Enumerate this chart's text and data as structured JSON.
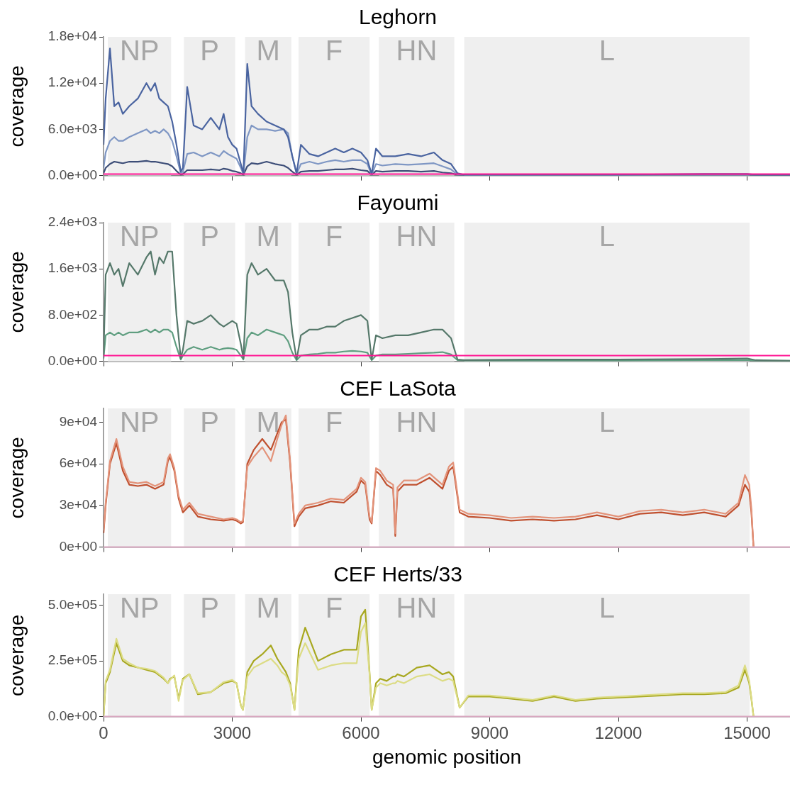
{
  "chart_data": [
    {
      "type": "line",
      "title": "Leghorn",
      "ylabel": "coverage",
      "marker": "none",
      "grid": false,
      "tick_labels": "y",
      "xlim": [
        0,
        16000
      ],
      "xticks": [
        0,
        3000,
        6000,
        9000,
        12000,
        15000
      ],
      "ylim": [
        0,
        18000
      ],
      "yticks": [
        {
          "value": 0,
          "label": "0.0e+00"
        },
        {
          "value": 6000,
          "label": "6.0e+03"
        },
        {
          "value": 12000,
          "label": "1.2e+04"
        },
        {
          "value": 18000,
          "label": "1.8e+04"
        }
      ],
      "bands": [
        {
          "axis": "x",
          "from": 100,
          "to": 1575,
          "label": "NP",
          "color": "#efefef"
        },
        {
          "axis": "x",
          "from": 1874,
          "to": 3068,
          "label": "P",
          "color": "#efefef"
        },
        {
          "axis": "x",
          "from": 3300,
          "to": 4378,
          "label": "M",
          "color": "#efefef"
        },
        {
          "axis": "x",
          "from": 4544,
          "to": 6202,
          "label": "F",
          "color": "#efefef"
        },
        {
          "axis": "x",
          "from": 6418,
          "to": 8176,
          "label": "HN",
          "color": "#efefef"
        },
        {
          "axis": "x",
          "from": 8408,
          "to": 15058,
          "label": "L",
          "color": "#efefef"
        }
      ],
      "ref_lines": [
        {
          "axis": "y",
          "value": 200,
          "color": "#ff1493"
        }
      ],
      "x": [
        0,
        50,
        150,
        250,
        350,
        450,
        600,
        800,
        1000,
        1100,
        1200,
        1300,
        1400,
        1500,
        1600,
        1700,
        1800,
        1850,
        1950,
        2100,
        2300,
        2500,
        2700,
        2800,
        2900,
        3000,
        3100,
        3200,
        3260,
        3350,
        3450,
        3600,
        3800,
        4000,
        4200,
        4300,
        4400,
        4500,
        4600,
        4800,
        5000,
        5200,
        5400,
        5600,
        5800,
        6000,
        6150,
        6250,
        6350,
        6500,
        6800,
        7100,
        7400,
        7700,
        7900,
        8100,
        8250,
        8400,
        10000,
        12000,
        14000,
        15000,
        15200,
        16000
      ],
      "series": [
        {
          "color": "#4a64a0",
          "values": [
            4000,
            10000,
            16500,
            9000,
            9500,
            8000,
            9000,
            10000,
            12000,
            11000,
            12000,
            10000,
            9500,
            9000,
            7000,
            4000,
            500,
            1000,
            11500,
            6500,
            6000,
            7500,
            6000,
            8000,
            5000,
            4000,
            3500,
            1500,
            300,
            14500,
            9000,
            8000,
            7000,
            6500,
            6000,
            5000,
            2500,
            300,
            4000,
            2800,
            2500,
            3000,
            3500,
            3000,
            3500,
            3000,
            2000,
            200,
            3500,
            2500,
            2500,
            2800,
            2500,
            3000,
            2000,
            1500,
            300,
            100,
            100,
            100,
            200,
            200,
            100,
            100
          ]
        },
        {
          "color": "#7f97c4",
          "values": [
            1000,
            3000,
            4500,
            5000,
            4500,
            4500,
            5000,
            5500,
            6000,
            5500,
            5800,
            5500,
            6000,
            5500,
            4500,
            2500,
            300,
            500,
            2800,
            3000,
            2500,
            3000,
            2500,
            3200,
            2800,
            2500,
            2200,
            1000,
            200,
            5000,
            6500,
            6000,
            6000,
            5800,
            6000,
            5500,
            2500,
            200,
            1500,
            1800,
            1500,
            1800,
            2000,
            1800,
            2000,
            2000,
            1500,
            100,
            1500,
            1300,
            1500,
            1400,
            1500,
            1600,
            1200,
            800,
            100,
            100,
            100,
            100,
            100,
            100,
            100,
            100
          ]
        },
        {
          "color": "#3d4e78",
          "values": [
            300,
            1000,
            1500,
            1800,
            1700,
            1600,
            1800,
            1800,
            1900,
            1800,
            1800,
            1700,
            1600,
            1500,
            1200,
            600,
            100,
            200,
            700,
            700,
            700,
            800,
            700,
            900,
            800,
            600,
            500,
            300,
            100,
            1200,
            1600,
            1500,
            1800,
            1500,
            1300,
            1000,
            500,
            100,
            500,
            600,
            600,
            700,
            800,
            800,
            900,
            700,
            600,
            100,
            600,
            500,
            600,
            600,
            500,
            600,
            400,
            300,
            100,
            0,
            0,
            0,
            0,
            0,
            0,
            0
          ]
        }
      ]
    },
    {
      "type": "line",
      "title": "Fayoumi",
      "ylabel": "coverage",
      "marker": "none",
      "grid": false,
      "tick_labels": "y",
      "xlim": [
        0,
        16000
      ],
      "xticks": [
        0,
        3000,
        6000,
        9000,
        12000,
        15000
      ],
      "ylim": [
        0,
        2400
      ],
      "yticks": [
        {
          "value": 0,
          "label": "0.0e+00"
        },
        {
          "value": 800,
          "label": "8.0e+02"
        },
        {
          "value": 1600,
          "label": "1.6e+03"
        },
        {
          "value": 2400,
          "label": "2.4e+03"
        }
      ],
      "bands": [
        {
          "axis": "x",
          "from": 100,
          "to": 1575,
          "label": "NP",
          "color": "#efefef"
        },
        {
          "axis": "x",
          "from": 1874,
          "to": 3068,
          "label": "P",
          "color": "#efefef"
        },
        {
          "axis": "x",
          "from": 3300,
          "to": 4378,
          "label": "M",
          "color": "#efefef"
        },
        {
          "axis": "x",
          "from": 4544,
          "to": 6202,
          "label": "F",
          "color": "#efefef"
        },
        {
          "axis": "x",
          "from": 6418,
          "to": 8176,
          "label": "HN",
          "color": "#efefef"
        },
        {
          "axis": "x",
          "from": 8408,
          "to": 15058,
          "label": "L",
          "color": "#efefef"
        }
      ],
      "ref_lines": [
        {
          "axis": "y",
          "value": 100,
          "color": "#ff1493"
        }
      ],
      "x": [
        0,
        50,
        150,
        250,
        350,
        450,
        600,
        800,
        1000,
        1100,
        1200,
        1300,
        1400,
        1500,
        1600,
        1700,
        1800,
        1850,
        1950,
        2100,
        2300,
        2500,
        2700,
        2800,
        2900,
        3000,
        3100,
        3200,
        3260,
        3350,
        3450,
        3600,
        3800,
        4000,
        4200,
        4300,
        4400,
        4500,
        4600,
        4800,
        5000,
        5200,
        5400,
        5600,
        5800,
        6000,
        6150,
        6250,
        6350,
        6500,
        6800,
        7100,
        7400,
        7700,
        7900,
        8100,
        8250,
        8400,
        10000,
        12000,
        14000,
        15000,
        15200,
        16000
      ],
      "series": [
        {
          "color": "#55786a",
          "values": [
            100,
            1500,
            1700,
            1500,
            1600,
            1300,
            1700,
            1500,
            1800,
            1900,
            1500,
            1800,
            1700,
            1900,
            1900,
            800,
            50,
            200,
            700,
            650,
            700,
            800,
            650,
            600,
            650,
            700,
            650,
            300,
            50,
            1500,
            1700,
            1500,
            1600,
            1400,
            1400,
            1200,
            500,
            30,
            450,
            550,
            550,
            600,
            600,
            700,
            750,
            800,
            700,
            30,
            450,
            400,
            450,
            450,
            500,
            550,
            550,
            400,
            30,
            20,
            30,
            30,
            40,
            50,
            20,
            10
          ]
        },
        {
          "color": "#5f9e80",
          "values": [
            50,
            450,
            500,
            450,
            500,
            450,
            500,
            500,
            550,
            500,
            550,
            500,
            550,
            550,
            500,
            250,
            30,
            100,
            200,
            250,
            200,
            250,
            200,
            220,
            230,
            220,
            200,
            100,
            30,
            400,
            500,
            450,
            550,
            500,
            450,
            350,
            150,
            20,
            100,
            120,
            130,
            150,
            150,
            170,
            180,
            170,
            150,
            20,
            100,
            120,
            120,
            130,
            140,
            150,
            160,
            120,
            20,
            10,
            10,
            10,
            20,
            20,
            10,
            10
          ]
        }
      ]
    },
    {
      "type": "line",
      "title": "CEF LaSota",
      "ylabel": "coverage",
      "marker": "none",
      "grid": false,
      "tick_labels": "y",
      "xlim": [
        0,
        16000
      ],
      "xticks": [
        0,
        3000,
        6000,
        9000,
        12000,
        15000
      ],
      "ylim": [
        0,
        100000
      ],
      "yticks": [
        {
          "value": 0,
          "label": "0e+00"
        },
        {
          "value": 30000,
          "label": "3e+04"
        },
        {
          "value": 60000,
          "label": "6e+04"
        },
        {
          "value": 90000,
          "label": "9e+04"
        }
      ],
      "bands": [
        {
          "axis": "x",
          "from": 100,
          "to": 1575,
          "label": "NP",
          "color": "#efefef"
        },
        {
          "axis": "x",
          "from": 1874,
          "to": 3068,
          "label": "P",
          "color": "#efefef"
        },
        {
          "axis": "x",
          "from": 3300,
          "to": 4378,
          "label": "M",
          "color": "#efefef"
        },
        {
          "axis": "x",
          "from": 4544,
          "to": 6202,
          "label": "F",
          "color": "#efefef"
        },
        {
          "axis": "x",
          "from": 6418,
          "to": 8176,
          "label": "HN",
          "color": "#efefef"
        },
        {
          "axis": "x",
          "from": 8408,
          "to": 15058,
          "label": "L",
          "color": "#efefef"
        }
      ],
      "ref_lines": [
        {
          "axis": "y",
          "value": 0,
          "color": "#d8a8c0"
        }
      ],
      "x": [
        0,
        50,
        150,
        300,
        450,
        600,
        800,
        1000,
        1200,
        1400,
        1500,
        1550,
        1650,
        1750,
        1850,
        2000,
        2200,
        2500,
        2800,
        3000,
        3100,
        3200,
        3250,
        3350,
        3500,
        3700,
        3900,
        4050,
        4150,
        4250,
        4350,
        4450,
        4550,
        4700,
        5000,
        5300,
        5600,
        5900,
        6000,
        6100,
        6200,
        6250,
        6350,
        6450,
        6600,
        6750,
        6800,
        6850,
        7000,
        7300,
        7600,
        7900,
        8050,
        8150,
        8300,
        8500,
        9000,
        9500,
        10000,
        10500,
        11000,
        11500,
        12000,
        12500,
        13000,
        13500,
        14000,
        14500,
        14800,
        14950,
        15050,
        15100,
        15150
      ],
      "series": [
        {
          "color": "#e3937a",
          "values": [
            12000,
            32000,
            62000,
            78000,
            58000,
            47000,
            46000,
            47000,
            44000,
            47000,
            64000,
            67000,
            57000,
            37000,
            27000,
            32000,
            24000,
            22000,
            20000,
            21000,
            20000,
            18000,
            19000,
            58000,
            65000,
            72000,
            62000,
            78000,
            88000,
            95000,
            62000,
            17000,
            24000,
            30000,
            32000,
            35000,
            34000,
            42000,
            50000,
            47000,
            22000,
            18000,
            57000,
            55000,
            48000,
            45000,
            10000,
            43000,
            48000,
            48000,
            53000,
            45000,
            58000,
            61000,
            27000,
            24000,
            23000,
            21000,
            22000,
            21000,
            22000,
            25000,
            22000,
            26000,
            27000,
            25000,
            27000,
            24000,
            32000,
            52000,
            45000,
            28000,
            0
          ]
        },
        {
          "color": "#c0502f",
          "values": [
            10000,
            30000,
            60000,
            75000,
            55000,
            45000,
            44000,
            45000,
            42000,
            45000,
            62000,
            65000,
            55000,
            35000,
            25000,
            30000,
            22000,
            20000,
            19000,
            20000,
            19000,
            17000,
            18000,
            60000,
            70000,
            78000,
            70000,
            82000,
            90000,
            92000,
            60000,
            15000,
            22000,
            28000,
            30000,
            33000,
            32000,
            40000,
            48000,
            45000,
            20000,
            17000,
            55000,
            52000,
            45000,
            42000,
            8000,
            40000,
            45000,
            45000,
            50000,
            42000,
            55000,
            58000,
            25000,
            22000,
            21000,
            19000,
            20000,
            19000,
            20000,
            23000,
            20000,
            24000,
            25000,
            23000,
            25000,
            22000,
            30000,
            45000,
            40000,
            25000,
            0
          ]
        }
      ]
    },
    {
      "type": "line",
      "title": "CEF Herts/33",
      "xlabel": "genomic position",
      "ylabel": "coverage",
      "marker": "none",
      "grid": false,
      "xlim": [
        0,
        16000
      ],
      "xticks": [
        0,
        3000,
        6000,
        9000,
        12000,
        15000
      ],
      "ylim": [
        0,
        550000
      ],
      "yticks": [
        {
          "value": 0,
          "label": "0.0e+00"
        },
        {
          "value": 250000,
          "label": "2.5e+05"
        },
        {
          "value": 500000,
          "label": "5.0e+05"
        }
      ],
      "bands": [
        {
          "axis": "x",
          "from": 100,
          "to": 1575,
          "label": "NP",
          "color": "#efefef"
        },
        {
          "axis": "x",
          "from": 1874,
          "to": 3068,
          "label": "P",
          "color": "#efefef"
        },
        {
          "axis": "x",
          "from": 3300,
          "to": 4378,
          "label": "M",
          "color": "#efefef"
        },
        {
          "axis": "x",
          "from": 4544,
          "to": 6202,
          "label": "F",
          "color": "#efefef"
        },
        {
          "axis": "x",
          "from": 6418,
          "to": 8176,
          "label": "HN",
          "color": "#efefef"
        },
        {
          "axis": "x",
          "from": 8408,
          "to": 15058,
          "label": "L",
          "color": "#efefef"
        }
      ],
      "ref_lines": [
        {
          "axis": "y",
          "value": 0,
          "color": "#d8a8c0"
        }
      ],
      "x": [
        0,
        50,
        150,
        300,
        450,
        600,
        800,
        1000,
        1200,
        1400,
        1500,
        1550,
        1650,
        1750,
        1850,
        2000,
        2200,
        2500,
        2800,
        3000,
        3100,
        3200,
        3250,
        3350,
        3500,
        3700,
        3900,
        4050,
        4150,
        4250,
        4350,
        4450,
        4550,
        4700,
        5000,
        5300,
        5600,
        5900,
        6000,
        6100,
        6200,
        6250,
        6350,
        6450,
        6600,
        6750,
        6800,
        6850,
        7000,
        7300,
        7600,
        7900,
        8050,
        8150,
        8300,
        8500,
        9000,
        9500,
        10000,
        10500,
        11000,
        11500,
        12000,
        12500,
        13000,
        13500,
        14000,
        14500,
        14800,
        14950,
        15050,
        15100,
        15150
      ],
      "series": [
        {
          "color": "#dcdc84",
          "values": [
            0,
            160000,
            210000,
            350000,
            260000,
            240000,
            220000,
            215000,
            205000,
            175000,
            150000,
            165000,
            185000,
            70000,
            165000,
            190000,
            105000,
            110000,
            155000,
            165000,
            150000,
            50000,
            30000,
            180000,
            220000,
            240000,
            260000,
            230000,
            200000,
            185000,
            140000,
            30000,
            260000,
            330000,
            210000,
            230000,
            240000,
            240000,
            380000,
            420000,
            190000,
            30000,
            130000,
            150000,
            140000,
            150000,
            150000,
            160000,
            150000,
            180000,
            190000,
            160000,
            170000,
            160000,
            40000,
            95000,
            95000,
            85000,
            75000,
            95000,
            75000,
            85000,
            90000,
            95000,
            100000,
            105000,
            105000,
            110000,
            140000,
            230000,
            160000,
            85000,
            0
          ]
        },
        {
          "color": "#a8a820",
          "values": [
            0,
            150000,
            200000,
            330000,
            250000,
            230000,
            220000,
            210000,
            200000,
            170000,
            150000,
            170000,
            180000,
            80000,
            170000,
            190000,
            100000,
            110000,
            150000,
            160000,
            150000,
            50000,
            30000,
            200000,
            250000,
            280000,
            320000,
            260000,
            230000,
            200000,
            150000,
            30000,
            300000,
            400000,
            250000,
            280000,
            300000,
            300000,
            450000,
            480000,
            200000,
            30000,
            150000,
            170000,
            160000,
            180000,
            180000,
            190000,
            180000,
            220000,
            230000,
            190000,
            200000,
            180000,
            40000,
            90000,
            90000,
            80000,
            70000,
            90000,
            70000,
            80000,
            85000,
            90000,
            95000,
            100000,
            100000,
            105000,
            130000,
            210000,
            150000,
            80000,
            0
          ]
        }
      ]
    }
  ]
}
